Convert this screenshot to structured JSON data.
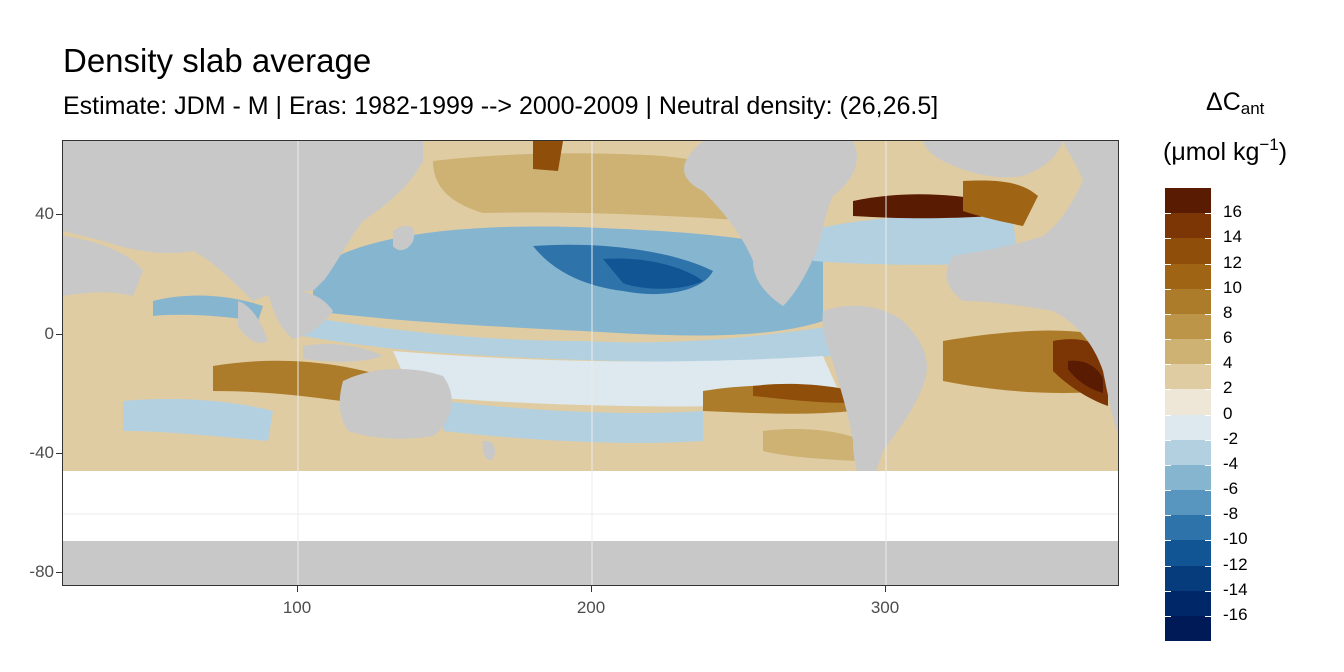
{
  "title": "Density slab average",
  "subtitle": "Estimate: JDM - M | Eras: 1982-1999 --> 2000-2009 | Neutral density: (26,26.5]",
  "legend": {
    "symbol": "ΔC",
    "symbol_sub": "ant",
    "unit_open": "(μmol kg",
    "unit_sup": "−1",
    "unit_close": ")",
    "labels": [
      "16",
      "14",
      "12",
      "10",
      "8",
      "6",
      "4",
      "2",
      "0",
      "-2",
      "-4",
      "-6",
      "-8",
      "-10",
      "-12",
      "-14",
      "-16"
    ],
    "colors": [
      "#5a1b03",
      "#7c3505",
      "#8f4e0a",
      "#9f6514",
      "#ad7c2a",
      "#bd9548",
      "#ceb274",
      "#e0cca2",
      "#eee6d6",
      "#dde9ee",
      "#b3d0e0",
      "#86b5d0",
      "#5896bf",
      "#2f73ab",
      "#115595",
      "#063c7c",
      "#002767",
      "#001a57"
    ]
  },
  "chart_data": {
    "type": "heatmap",
    "title": "Density slab average",
    "subtitle": "Estimate: JDM - M | Eras: 1982-1999 --> 2000-2009 | Neutral density: (26,26.5]",
    "xlabel": "",
    "ylabel": "",
    "x_ticks": [
      "100",
      "200",
      "300"
    ],
    "y_ticks": [
      "40",
      "0",
      "-40",
      "-80"
    ],
    "xlim": [
      20,
      380
    ],
    "ylim": [
      -85,
      65
    ],
    "grid": true,
    "legend_position": "right",
    "colorbar_range": [
      -18,
      18
    ],
    "colorbar_step": 2,
    "land_color": "#c8c8c8",
    "no_data_band_lat": [
      -70,
      -45
    ]
  }
}
